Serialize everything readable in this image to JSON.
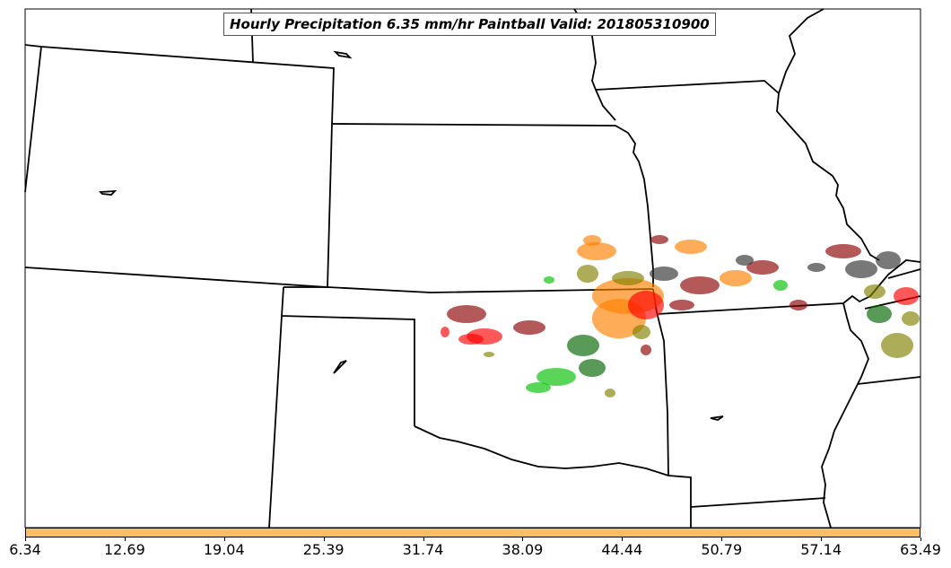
{
  "title": "Hourly Precipitation 6.35 mm/hr Paintball Valid: 201805310900",
  "colorbar": {
    "color": "#fdbf5f",
    "ticks": [
      "6.34",
      "12.69",
      "19.04",
      "25.39",
      "31.74",
      "38.09",
      "44.44",
      "50.79",
      "57.14",
      "63.49"
    ]
  },
  "map": {
    "border_color": "#000000",
    "paintball_colors": [
      "#ff0000",
      "#8b0000",
      "#ff8000",
      "#00c000",
      "#006400",
      "#808000",
      "#2f2f2f",
      "#ff4040"
    ]
  }
}
